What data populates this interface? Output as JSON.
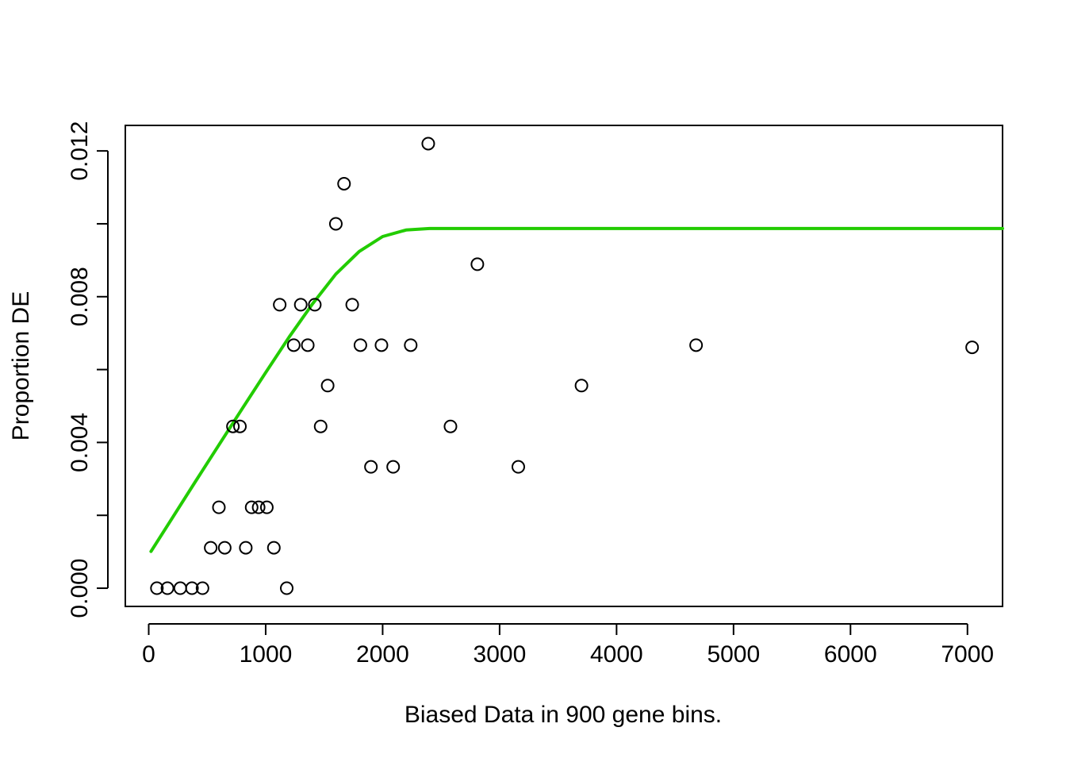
{
  "chart_data": {
    "type": "scatter",
    "title": "",
    "xlabel": "Biased Data in 900 gene bins.",
    "ylabel": "Proportion DE",
    "xlim": [
      -200,
      7300
    ],
    "ylim": [
      -0.0005,
      0.0127
    ],
    "x_ticks": [
      0,
      1000,
      2000,
      3000,
      4000,
      5000,
      6000,
      7000
    ],
    "x_tick_labels": [
      "0",
      "1000",
      "2000",
      "3000",
      "4000",
      "5000",
      "6000",
      "7000"
    ],
    "y_ticks": [
      0.0,
      0.002,
      0.004,
      0.006,
      0.008,
      0.01,
      0.012
    ],
    "y_tick_labels": [
      "0.000",
      "",
      "0.004",
      "",
      "0.008",
      "",
      "0.012"
    ],
    "grid": false,
    "legend": "none",
    "colors": {
      "points": "#000000",
      "fit_line": "#22cc00",
      "axes": "#000000"
    },
    "series": [
      {
        "type": "scatter",
        "x": [
          70,
          160,
          270,
          370,
          460,
          530,
          600,
          650,
          720,
          780,
          830,
          880,
          940,
          1010,
          1070,
          1120,
          1180,
          1240,
          1300,
          1360,
          1420,
          1470,
          1530,
          1600,
          1670,
          1740,
          1810,
          1900,
          1990,
          2090,
          2240,
          2390,
          2580,
          2810,
          3160,
          3700,
          4680,
          7040
        ],
        "y": [
          0.0,
          0.0,
          0.0,
          0.0,
          0.0,
          0.00111,
          0.00222,
          0.00111,
          0.00444,
          0.00444,
          0.00111,
          0.00222,
          0.00222,
          0.00222,
          0.00111,
          0.00778,
          0.0,
          0.00667,
          0.00778,
          0.00667,
          0.00778,
          0.00444,
          0.00556,
          0.01,
          0.0111,
          0.00778,
          0.00667,
          0.00333,
          0.00667,
          0.00333,
          0.00667,
          0.0122,
          0.00444,
          0.00889,
          0.00333,
          0.00556,
          0.00667,
          0.00661
        ]
      },
      {
        "type": "line",
        "x": [
          20,
          200,
          400,
          600,
          800,
          1000,
          1200,
          1400,
          1600,
          1800,
          2000,
          2200,
          2400,
          2600,
          2800,
          3000,
          4000,
          5000,
          6000,
          7000,
          7300
        ],
        "y": [
          0.00101,
          0.00192,
          0.00293,
          0.00393,
          0.00493,
          0.00592,
          0.00689,
          0.0078,
          0.00862,
          0.00924,
          0.00965,
          0.00983,
          0.00987,
          0.00987,
          0.00987,
          0.00987,
          0.00987,
          0.00987,
          0.00987,
          0.00987,
          0.00987
        ]
      }
    ]
  }
}
